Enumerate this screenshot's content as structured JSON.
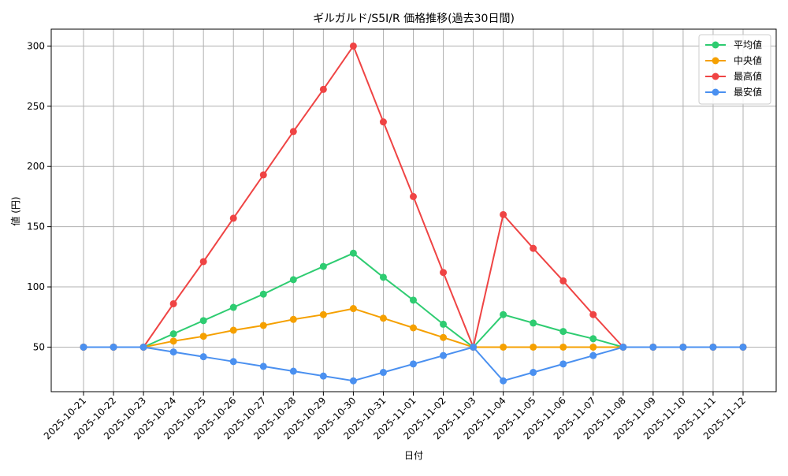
{
  "chart_data": {
    "type": "line",
    "title": "ギルガルド/S5I/R 価格推移(過去30日間)",
    "xlabel": "日付",
    "ylabel": "値 (円)",
    "x": [
      "2025-10-21",
      "2025-10-22",
      "2025-10-23",
      "2025-10-24",
      "2025-10-25",
      "2025-10-26",
      "2025-10-27",
      "2025-10-28",
      "2025-10-29",
      "2025-10-30",
      "2025-10-31",
      "2025-11-01",
      "2025-11-02",
      "2025-11-03",
      "2025-11-04",
      "2025-11-05",
      "2025-11-06",
      "2025-11-07",
      "2025-11-08",
      "2025-11-09",
      "2025-11-10",
      "2025-11-11",
      "2025-11-12"
    ],
    "ylim": [
      13,
      314
    ],
    "yticks": [
      50,
      100,
      150,
      200,
      250,
      300
    ],
    "grid": true,
    "legend_position": "top-right",
    "series": [
      {
        "name": "平均値",
        "color": "#2ecc71",
        "values": [
          50,
          50,
          50,
          61,
          72,
          83,
          94,
          106,
          117,
          128,
          108,
          89,
          69,
          50,
          77,
          70,
          63,
          57,
          50,
          50,
          50,
          50,
          50
        ]
      },
      {
        "name": "中央値",
        "color": "#f5a000",
        "values": [
          50,
          50,
          50,
          55,
          59,
          64,
          68,
          73,
          77,
          82,
          74,
          66,
          58,
          50,
          50,
          50,
          50,
          50,
          50,
          50,
          50,
          50,
          50
        ]
      },
      {
        "name": "最高値",
        "color": "#ef4444",
        "values": [
          50,
          50,
          50,
          86,
          121,
          157,
          193,
          229,
          264,
          300,
          237,
          175,
          112,
          50,
          160,
          132,
          105,
          77,
          50,
          50,
          50,
          50,
          50
        ]
      },
      {
        "name": "最安値",
        "color": "#4a90f0",
        "values": [
          50,
          50,
          50,
          46,
          42,
          38,
          34,
          30,
          26,
          22,
          29,
          36,
          43,
          50,
          22,
          29,
          36,
          43,
          50,
          50,
          50,
          50,
          50
        ]
      }
    ]
  }
}
